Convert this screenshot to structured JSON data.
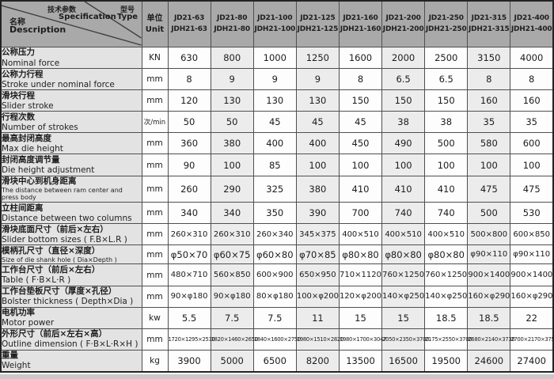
{
  "colors": {
    "header_bg": "#a9a9a9",
    "label_column_bg": "#e3e3e3",
    "zebra_column_bg": "#ececec",
    "plain_column_bg": "#fdfdfd",
    "grid_border": "#4f4f4f",
    "outer_border": "#232323",
    "text": "#1c1c1c"
  },
  "header": {
    "corner": {
      "spec_zh": "技术参数",
      "spec_en": "Specification",
      "type_zh": "型号",
      "type_en": "Type",
      "name_zh": "名称",
      "name_en": "Description"
    },
    "unit_zh": "单位",
    "unit_en": "Unit",
    "models": [
      {
        "l1": "JD21-63",
        "l2": "JDH21-63"
      },
      {
        "l1": "JD21-80",
        "l2": "JDH21-80"
      },
      {
        "l1": "JD21-100",
        "l2": "JDH21-100"
      },
      {
        "l1": "JD21-125",
        "l2": "JDH21-125"
      },
      {
        "l1": "JD21-160",
        "l2": "JDH21-160"
      },
      {
        "l1": "JD21-200",
        "l2": "JDH21-200"
      },
      {
        "l1": "JD21-250",
        "l2": "JDH21-250"
      },
      {
        "l1": "JD21-315",
        "l2": "JDH21-315"
      },
      {
        "l1": "JD21-400",
        "l2": "JDH21-400"
      }
    ]
  },
  "rows": [
    {
      "zh": "公称压力",
      "en": "Nominal force",
      "unit": "KN",
      "values": [
        "630",
        "800",
        "1000",
        "1250",
        "1600",
        "2000",
        "2500",
        "3150",
        "4000"
      ]
    },
    {
      "zh": "公称力行程",
      "en": "Stroke under nominal force",
      "unit": "mm",
      "values": [
        "8",
        "9",
        "9",
        "9",
        "8",
        "6.5",
        "6.5",
        "8",
        "8"
      ]
    },
    {
      "zh": "滑块行程",
      "en": "Slider stroke",
      "unit": "mm",
      "values": [
        "120",
        "130",
        "130",
        "130",
        "150",
        "150",
        "150",
        "160",
        "160"
      ]
    },
    {
      "zh": "行程次数",
      "en": "Number of strokes",
      "unit": "次/min",
      "values": [
        "50",
        "50",
        "45",
        "45",
        "45",
        "38",
        "38",
        "35",
        "35"
      ]
    },
    {
      "zh": "最高封闭高度",
      "en": "Max die height",
      "unit": "mm",
      "values": [
        "360",
        "380",
        "400",
        "400",
        "450",
        "490",
        "500",
        "580",
        "600"
      ]
    },
    {
      "zh": "封闭高度调节量",
      "en": "Die height adjustment",
      "unit": "mm",
      "values": [
        "90",
        "100",
        "85",
        "100",
        "100",
        "100",
        "100",
        "100",
        "100"
      ]
    },
    {
      "zh": "滑块中心到机身距离",
      "en": "The distance between ram center and press body",
      "unit": "mm",
      "values": [
        "260",
        "290",
        "325",
        "380",
        "410",
        "410",
        "410",
        "475",
        "475"
      ]
    },
    {
      "zh": "立柱间距离",
      "en": "Distance between two columns",
      "unit": "mm",
      "values": [
        "340",
        "340",
        "350",
        "390",
        "700",
        "740",
        "740",
        "500",
        "530"
      ]
    },
    {
      "zh": "滑块底面尺寸（前后×左右）",
      "en": "Slider bottom sizes ( F.B×L.R )",
      "unit": "mm",
      "values": [
        "260×310",
        "260×310",
        "260×340",
        "345×375",
        "400×510",
        "400×510",
        "400×510",
        "500×800",
        "600×850"
      ]
    },
    {
      "zh": "模柄孔尺寸（直径×深度）",
      "en": "Size of die shank hole ( Dia×Depth )",
      "unit": "mm",
      "values": [
        "φ50×70",
        "φ60×75",
        "φ60×80",
        "φ70×85",
        "φ80×80",
        "φ80×80",
        "φ80×80",
        "φ90×110",
        "φ90×110"
      ]
    },
    {
      "zh": "工作台尺寸（前后×左右）",
      "en": "Table ( F·B×L·R )",
      "unit": "mm",
      "values": [
        "480×710",
        "560×850",
        "600×900",
        "650×950",
        "710×1120",
        "760×1250",
        "760×1250",
        "900×1400",
        "900×1400"
      ]
    },
    {
      "zh": "工作台垫板尺寸（厚度×孔径）",
      "en": "Bolster thickness ( Depth×Dia )",
      "unit": "mm",
      "values": [
        "90×φ180",
        "90×φ180",
        "80×φ180",
        "100×φ200",
        "120×φ200",
        "140×φ250",
        "140×φ250",
        "160×φ290",
        "160×φ290"
      ]
    },
    {
      "zh": "电机功率",
      "en": "Motor power",
      "unit": "kw",
      "values": [
        "5.5",
        "7.5",
        "7.5",
        "11",
        "15",
        "15",
        "18.5",
        "18.5",
        "22"
      ]
    },
    {
      "zh": "外形尺寸（前后×左右×高）",
      "en": "Outline dimension ( F·B×L·R×H )",
      "unit": "mm",
      "values": [
        "1720×1295×2530",
        "1820×1460×2650",
        "1840×1600×2750",
        "1980×1510×2820",
        "1980×1700×3047",
        "2050×2350×3700",
        "2175×2550×3700",
        "2680×2140×3730",
        "2700×2170×3750"
      ]
    },
    {
      "zh": "重量",
      "en": "Weight",
      "unit": "kg",
      "values": [
        "3900",
        "5000",
        "6500",
        "8200",
        "13500",
        "16500",
        "19500",
        "24600",
        "27400"
      ]
    }
  ]
}
